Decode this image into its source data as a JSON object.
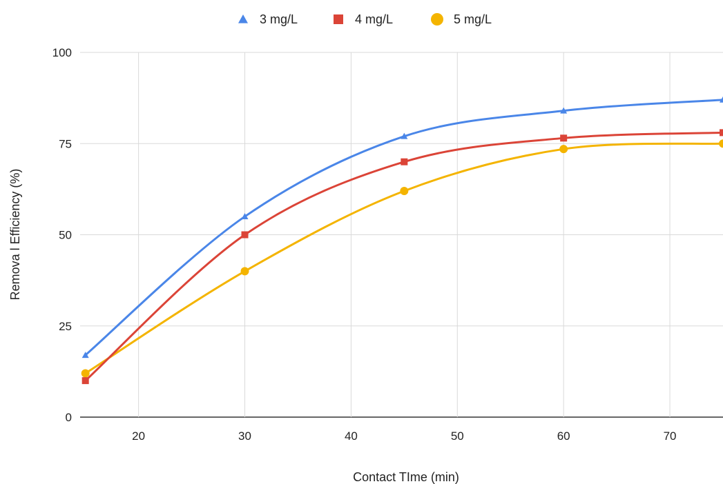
{
  "chart_data": {
    "type": "line",
    "title": "",
    "xlabel": "Contact TIme (min)",
    "ylabel": "Remova l Efficiency (%)",
    "xlim": [
      14.5,
      75
    ],
    "ylim": [
      0,
      100
    ],
    "xticks": [
      20,
      30,
      40,
      50,
      60,
      70
    ],
    "yticks": [
      0,
      25,
      50,
      75,
      100
    ],
    "grid": true,
    "legend_position": "top",
    "series": [
      {
        "name": "3 mg/L",
        "color": "#4a86e8",
        "marker": "triangle",
        "x": [
          15,
          30,
          45,
          60,
          75
        ],
        "y": [
          17,
          55,
          77,
          84,
          87
        ]
      },
      {
        "name": "4 mg/L",
        "color": "#db4437",
        "marker": "square",
        "x": [
          15,
          30,
          45,
          60,
          75
        ],
        "y": [
          10,
          50,
          70,
          76.5,
          78
        ]
      },
      {
        "name": "5 mg/L",
        "color": "#f4b400",
        "marker": "circle",
        "x": [
          15,
          30,
          45,
          60,
          75
        ],
        "y": [
          12,
          40,
          62,
          73.5,
          75
        ]
      }
    ]
  }
}
